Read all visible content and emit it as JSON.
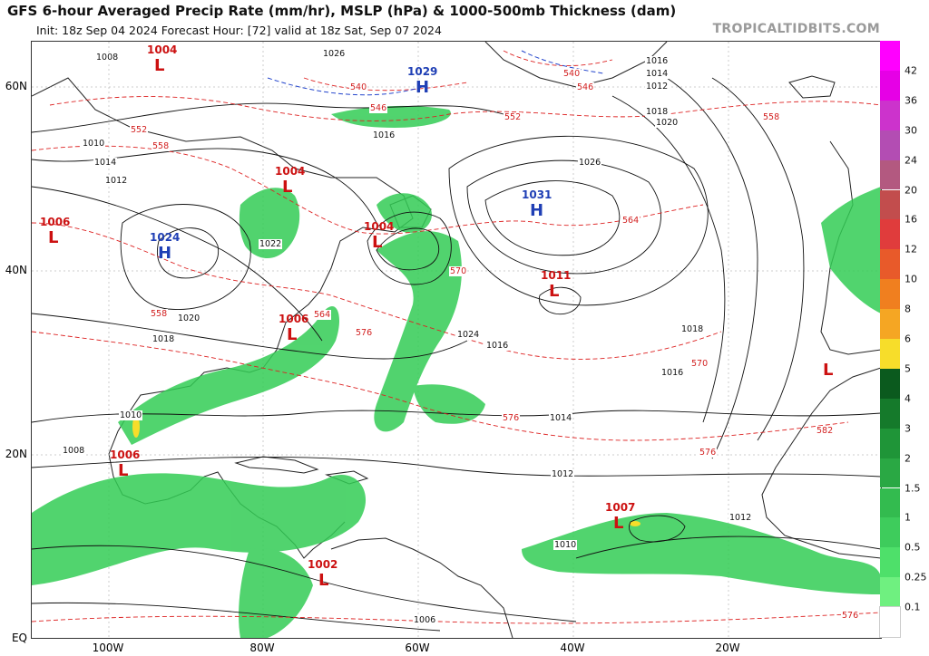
{
  "header": {
    "title": "GFS 6-hour Averaged Precip Rate (mm/hr), MSLP (hPa) & 1000-500mb Thickness (dam)",
    "init_line": "Init: 18z Sep 04 2024    Forecast Hour: [72]    valid at 18z Sat, Sep 07 2024",
    "brand": "TROPICALTIDBITS.COM"
  },
  "axes": {
    "latitudes": [
      "60N",
      "40N",
      "20N",
      "EQ"
    ],
    "longitudes": [
      "100W",
      "80W",
      "60W",
      "40W",
      "20W"
    ]
  },
  "colorbar": {
    "labels": [
      "42",
      "36",
      "30",
      "24",
      "20",
      "16",
      "12",
      "10",
      "8",
      "6",
      "5",
      "4",
      "3",
      "2",
      "1.5",
      "1",
      "0.5",
      "0.25",
      "0.1"
    ],
    "colors": [
      "#ff00ff",
      "#e600e6",
      "#cc33cc",
      "#b34db3",
      "#b35980",
      "#c24d4d",
      "#e03c3c",
      "#e85a2a",
      "#f07f1f",
      "#f5a623",
      "#f7dd2a",
      "#0b5a1e",
      "#157a2b",
      "#1f9538",
      "#2aa844",
      "#33bb4f",
      "#3ecc5c",
      "#4ee06a",
      "#6ff080"
    ]
  },
  "pressure_systems": [
    {
      "type": "L",
      "value": "1004",
      "color": "#cc1111"
    },
    {
      "type": "H",
      "value": "1029",
      "color": "#1f3fb5"
    },
    {
      "type": "L",
      "value": "1004",
      "color": "#cc1111"
    },
    {
      "type": "L",
      "value": "1006",
      "color": "#cc1111"
    },
    {
      "type": "H",
      "value": "1024",
      "color": "#1f3fb5"
    },
    {
      "type": "L",
      "value": "1004",
      "color": "#cc1111"
    },
    {
      "type": "H",
      "value": "1031",
      "color": "#1f3fb5"
    },
    {
      "type": "L",
      "value": "1011",
      "color": "#cc1111"
    },
    {
      "type": "L",
      "value": "1006",
      "color": "#cc1111"
    },
    {
      "type": "L",
      "value": "1006",
      "color": "#cc1111"
    },
    {
      "type": "L",
      "value": "1007",
      "color": "#cc1111"
    },
    {
      "type": "L",
      "value": "1002",
      "color": "#cc1111"
    },
    {
      "type": "L",
      "value": "",
      "color": "#cc1111"
    }
  ],
  "isobar_labels": [
    "1008",
    "1026",
    "1016",
    "1010",
    "1012",
    "1014",
    "1018",
    "1020",
    "1022",
    "1024",
    "1026",
    "1016",
    "1014",
    "1012",
    "1018",
    "1016",
    "1014",
    "1012",
    "1010",
    "1008",
    "1006",
    "1020",
    "1018",
    "1016",
    "1012",
    "1010"
  ],
  "thickness_labels": [
    "540",
    "546",
    "552",
    "558",
    "564",
    "570",
    "576",
    "582",
    "558",
    "564",
    "570",
    "576",
    "576",
    "576",
    "540",
    "546",
    "552",
    "558"
  ]
}
